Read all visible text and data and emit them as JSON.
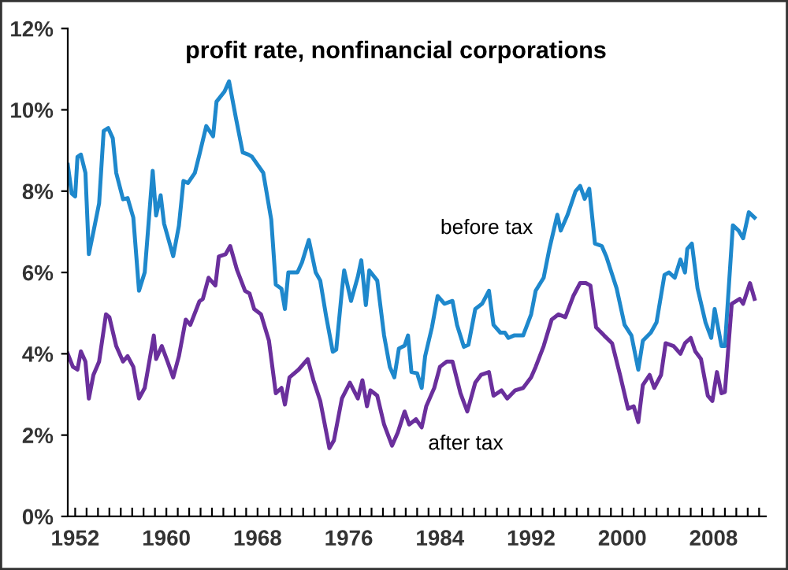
{
  "chart_data": {
    "type": "line",
    "title": "profit rate, nonfinancial corporations",
    "xlim": [
      1951.35,
      2012.6
    ],
    "ylim": [
      0,
      12
    ],
    "yticks": [
      {
        "value": 0,
        "label": "0%"
      },
      {
        "value": 2,
        "label": "2%"
      },
      {
        "value": 4,
        "label": "4%"
      },
      {
        "value": 6,
        "label": "6%"
      },
      {
        "value": 8,
        "label": "8%"
      },
      {
        "value": 10,
        "label": "10%"
      },
      {
        "value": 12,
        "label": "12%"
      }
    ],
    "xticks": [
      1952,
      {
        "value": 1953,
        "label": null
      },
      {
        "value": 1954,
        "label": null
      },
      {
        "value": 1955,
        "label": null
      },
      {
        "value": 1956,
        "label": null
      },
      {
        "value": 1957,
        "label": null
      },
      {
        "value": 1958,
        "label": null
      },
      {
        "value": 1959,
        "label": null
      },
      1960,
      {
        "value": 1961,
        "label": null
      },
      {
        "value": 1962,
        "label": null
      },
      {
        "value": 1963,
        "label": null
      },
      {
        "value": 1964,
        "label": null
      },
      {
        "value": 1965,
        "label": null
      },
      {
        "value": 1966,
        "label": null
      },
      {
        "value": 1967,
        "label": null
      },
      1968,
      {
        "value": 1969,
        "label": null
      },
      {
        "value": 1970,
        "label": null
      },
      {
        "value": 1971,
        "label": null
      },
      {
        "value": 1972,
        "label": null
      },
      {
        "value": 1973,
        "label": null
      },
      {
        "value": 1974,
        "label": null
      },
      {
        "value": 1975,
        "label": null
      },
      1976,
      {
        "value": 1977,
        "label": null
      },
      {
        "value": 1978,
        "label": null
      },
      {
        "value": 1979,
        "label": null
      },
      {
        "value": 1980,
        "label": null
      },
      {
        "value": 1981,
        "label": null
      },
      {
        "value": 1982,
        "label": null
      },
      {
        "value": 1983,
        "label": null
      },
      1984,
      {
        "value": 1985,
        "label": null
      },
      {
        "value": 1986,
        "label": null
      },
      {
        "value": 1987,
        "label": null
      },
      {
        "value": 1988,
        "label": null
      },
      {
        "value": 1989,
        "label": null
      },
      {
        "value": 1990,
        "label": null
      },
      {
        "value": 1991,
        "label": null
      },
      1992,
      {
        "value": 1993,
        "label": null
      },
      {
        "value": 1994,
        "label": null
      },
      {
        "value": 1995,
        "label": null
      },
      {
        "value": 1996,
        "label": null
      },
      {
        "value": 1997,
        "label": null
      },
      {
        "value": 1998,
        "label": null
      },
      {
        "value": 1999,
        "label": null
      },
      2000,
      {
        "value": 2001,
        "label": null
      },
      {
        "value": 2002,
        "label": null
      },
      {
        "value": 2003,
        "label": null
      },
      {
        "value": 2004,
        "label": null
      },
      {
        "value": 2005,
        "label": null
      },
      {
        "value": 2006,
        "label": null
      },
      {
        "value": 2007,
        "label": null
      },
      2008,
      {
        "value": 2009,
        "label": null
      },
      {
        "value": 2010,
        "label": null
      },
      {
        "value": 2011,
        "label": null
      },
      {
        "value": 2012,
        "label": null
      }
    ],
    "grid": false,
    "legend": false,
    "marker": "none",
    "line_style": "solid",
    "series": [
      {
        "name": "before tax",
        "color": "#1e88cc",
        "x": [
          1951.35,
          1951.7,
          1952.0,
          1952.2,
          1952.5,
          1952.9,
          1953.2,
          1953.6,
          1954.1,
          1954.5,
          1954.9,
          1955.3,
          1955.6,
          1956.2,
          1956.6,
          1957.1,
          1957.6,
          1958.1,
          1958.8,
          1959.1,
          1959.5,
          1959.8,
          1960.6,
          1961.1,
          1961.5,
          1961.9,
          1962.5,
          1962.9,
          1963.5,
          1964.1,
          1964.4,
          1965.1,
          1965.5,
          1966.1,
          1966.7,
          1967.2,
          1967.5,
          1968.5,
          1969.2,
          1969.6,
          1970.1,
          1970.4,
          1970.7,
          1971.5,
          1971.9,
          1972.5,
          1973.1,
          1973.5,
          1974.0,
          1974.6,
          1974.9,
          1975.4,
          1975.6,
          1976.2,
          1976.8,
          1977.1,
          1977.5,
          1977.8,
          1978.5,
          1979.1,
          1979.6,
          1980.0,
          1980.4,
          1980.9,
          1981.2,
          1981.5,
          1982.0,
          1982.4,
          1982.7,
          1983.3,
          1983.8,
          1984.4,
          1985.1,
          1985.5,
          1986.1,
          1986.5,
          1987.1,
          1987.7,
          1988.3,
          1988.7,
          1989.3,
          1989.7,
          1990.0,
          1990.5,
          1991.3,
          1992.0,
          1992.4,
          1993.1,
          1993.6,
          1994.3,
          1994.6,
          1995.2,
          1995.9,
          1996.3,
          1996.7,
          1997.1,
          1997.6,
          1998.2,
          1998.6,
          1999.5,
          2000.2,
          2000.8,
          2001.4,
          2001.8,
          2002.5,
          2003.0,
          2003.7,
          2004.1,
          2004.6,
          2005.1,
          2005.5,
          2005.7,
          2006.1,
          2006.6,
          2007.3,
          2007.8,
          2008.1,
          2008.7,
          2009.0,
          2009.7,
          2010.2,
          2010.6,
          2011.1,
          2011.6
        ],
        "values": [
          8.65,
          7.94,
          7.87,
          8.84,
          8.9,
          8.45,
          6.45,
          7.0,
          7.7,
          9.48,
          9.55,
          9.3,
          8.45,
          7.8,
          7.83,
          7.35,
          5.55,
          6.0,
          8.5,
          7.4,
          7.9,
          7.2,
          6.4,
          7.15,
          8.25,
          8.2,
          8.45,
          8.9,
          9.6,
          9.35,
          10.2,
          10.45,
          10.7,
          9.8,
          8.95,
          8.9,
          8.85,
          8.45,
          7.3,
          5.7,
          5.6,
          5.1,
          6.0,
          6.0,
          6.25,
          6.8,
          6.0,
          5.8,
          4.95,
          4.05,
          4.1,
          5.55,
          6.05,
          5.3,
          5.9,
          6.3,
          5.2,
          6.05,
          5.8,
          4.45,
          3.68,
          3.42,
          4.13,
          4.2,
          4.45,
          3.55,
          3.52,
          3.16,
          3.94,
          4.65,
          5.42,
          5.23,
          5.3,
          4.71,
          4.17,
          4.22,
          5.1,
          5.23,
          5.55,
          4.71,
          4.52,
          4.52,
          4.39,
          4.45,
          4.45,
          4.97,
          5.55,
          5.87,
          6.58,
          7.42,
          7.03,
          7.42,
          8.0,
          8.13,
          7.81,
          8.06,
          6.71,
          6.65,
          6.39,
          5.61,
          4.71,
          4.45,
          3.61,
          4.32,
          4.52,
          4.77,
          5.94,
          6.0,
          5.87,
          6.32,
          6.0,
          6.58,
          6.71,
          5.61,
          4.77,
          4.39,
          5.1,
          4.19,
          4.19,
          7.16,
          7.03,
          6.84,
          7.48,
          7.35
        ]
      },
      {
        "name": "after tax",
        "color": "#6a2f9c",
        "x": [
          1951.35,
          1951.8,
          1952.2,
          1952.5,
          1952.9,
          1953.2,
          1953.6,
          1954.1,
          1954.7,
          1955.0,
          1955.6,
          1956.2,
          1956.6,
          1957.1,
          1957.6,
          1958.1,
          1958.9,
          1959.1,
          1959.6,
          1960.1,
          1960.6,
          1961.1,
          1961.7,
          1962.1,
          1962.9,
          1963.2,
          1963.7,
          1964.3,
          1964.6,
          1965.2,
          1965.6,
          1966.2,
          1966.9,
          1967.3,
          1967.7,
          1968.3,
          1969.0,
          1969.6,
          1970.1,
          1970.4,
          1970.8,
          1971.6,
          1972.4,
          1972.9,
          1973.5,
          1974.3,
          1974.7,
          1975.4,
          1976.1,
          1976.8,
          1977.2,
          1977.6,
          1977.9,
          1978.5,
          1979.1,
          1979.8,
          1980.3,
          1980.9,
          1981.3,
          1981.9,
          1982.4,
          1982.8,
          1983.5,
          1984.0,
          1984.6,
          1985.1,
          1985.8,
          1986.4,
          1987.1,
          1987.6,
          1988.3,
          1988.7,
          1989.4,
          1989.9,
          1990.6,
          1991.3,
          1992.0,
          1992.4,
          1993.1,
          1993.8,
          1994.4,
          1995.0,
          1995.7,
          1996.3,
          1996.8,
          1997.2,
          1997.7,
          1998.4,
          1999.1,
          1999.8,
          2000.5,
          2001.0,
          2001.4,
          2001.8,
          2002.4,
          2002.8,
          2003.4,
          2003.8,
          2004.5,
          2005.1,
          2005.5,
          2006.0,
          2006.4,
          2006.9,
          2007.5,
          2007.9,
          2008.3,
          2008.7,
          2009.0,
          2009.6,
          2010.3,
          2010.6,
          2011.2,
          2011.6
        ],
        "values": [
          4.0,
          3.68,
          3.61,
          4.06,
          3.81,
          2.9,
          3.48,
          3.81,
          4.97,
          4.9,
          4.19,
          3.81,
          3.94,
          3.68,
          2.9,
          3.16,
          4.45,
          3.87,
          4.19,
          3.81,
          3.42,
          3.94,
          4.84,
          4.71,
          5.29,
          5.35,
          5.87,
          5.68,
          6.39,
          6.45,
          6.65,
          6.06,
          5.55,
          5.48,
          5.1,
          4.97,
          4.32,
          3.03,
          3.16,
          2.75,
          3.42,
          3.61,
          3.87,
          3.35,
          2.84,
          1.68,
          1.87,
          2.9,
          3.29,
          2.9,
          3.35,
          2.71,
          3.1,
          2.97,
          2.26,
          1.74,
          2.06,
          2.58,
          2.26,
          2.39,
          2.19,
          2.71,
          3.16,
          3.68,
          3.81,
          3.81,
          3.03,
          2.58,
          3.29,
          3.48,
          3.55,
          2.97,
          3.1,
          2.9,
          3.1,
          3.16,
          3.42,
          3.68,
          4.19,
          4.84,
          4.97,
          4.9,
          5.42,
          5.74,
          5.74,
          5.68,
          4.65,
          4.45,
          4.26,
          3.48,
          2.65,
          2.71,
          2.32,
          3.23,
          3.48,
          3.16,
          3.48,
          4.26,
          4.19,
          4.0,
          4.26,
          4.39,
          4.06,
          3.87,
          2.97,
          2.84,
          3.55,
          3.03,
          3.06,
          5.23,
          5.35,
          5.23,
          5.74,
          5.35
        ]
      }
    ]
  }
}
